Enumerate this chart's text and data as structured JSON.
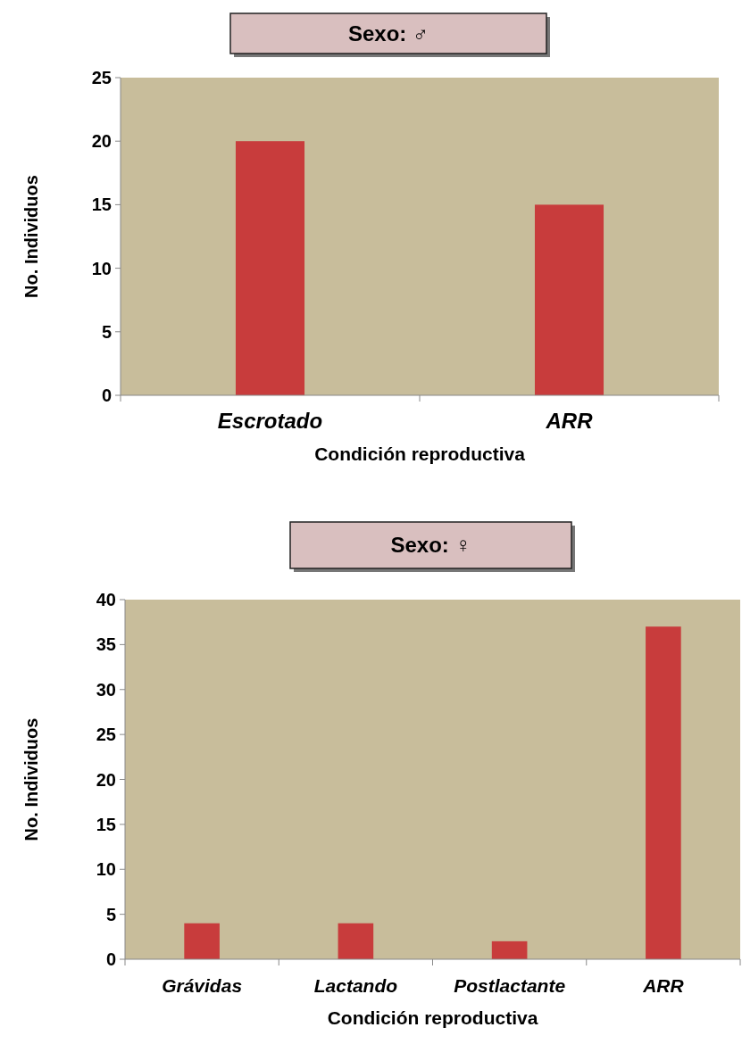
{
  "chart_data": [
    {
      "type": "bar",
      "title": "Sexo: ♂",
      "xlabel": "Condición  reproductiva",
      "ylabel": "No. Individuos",
      "categories": [
        "Escrotado",
        "ARR"
      ],
      "values": [
        20,
        15
      ],
      "color": "#c83c3c",
      "ylim": [
        0,
        25
      ],
      "yticks": [
        0,
        5,
        10,
        15,
        20,
        25
      ],
      "grid": false
    },
    {
      "type": "bar",
      "title": "Sexo: ♀",
      "xlabel": "Condición  reproductiva",
      "ylabel": "No. Individuos",
      "categories": [
        "Grávidas",
        "Lactando",
        "Postlactante",
        "ARR"
      ],
      "values": [
        4,
        4,
        2,
        37
      ],
      "color": "#c83c3c",
      "ylim": [
        0,
        40
      ],
      "yticks": [
        0,
        5,
        10,
        15,
        20,
        25,
        30,
        35,
        40
      ],
      "grid": false
    }
  ]
}
